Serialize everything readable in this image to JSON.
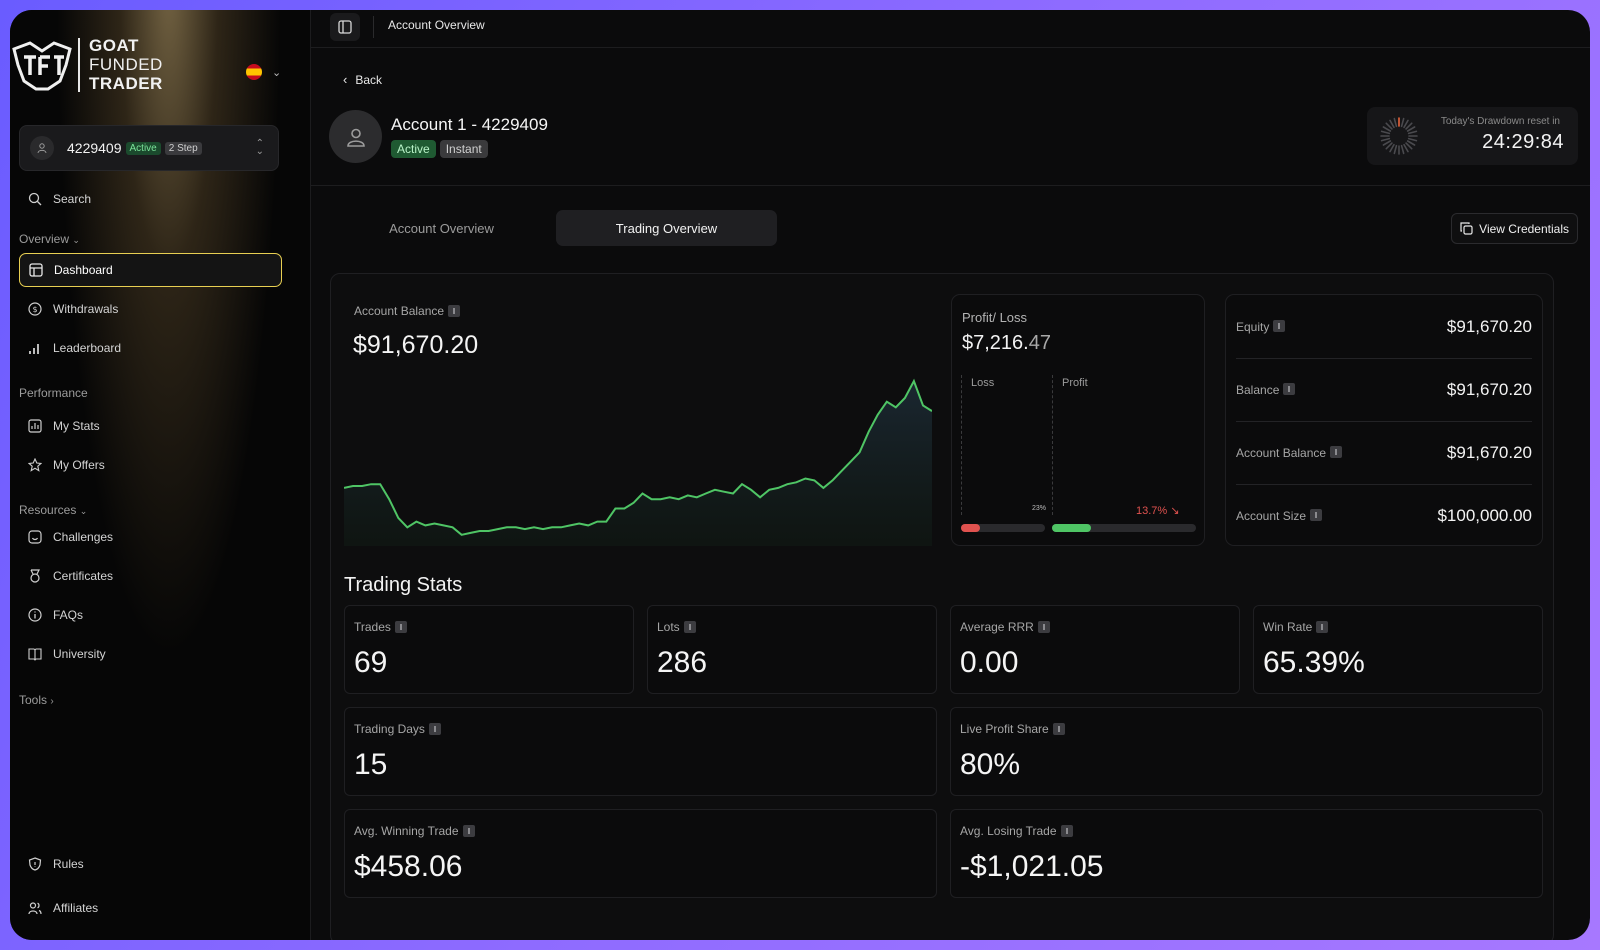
{
  "brand": {
    "line1": "GOAT",
    "line2": "FUNDED",
    "line3": "TRADER"
  },
  "account_switcher": {
    "id": "4229409",
    "status": "Active",
    "type": "2 Step"
  },
  "sidebar": {
    "search": "Search",
    "overview_label": "Overview",
    "overview_items": [
      "Dashboard",
      "Withdrawals",
      "Leaderboard"
    ],
    "performance_label": "Performance",
    "performance_items": [
      "My Stats",
      "My Offers"
    ],
    "resources_label": "Resources",
    "resources_items": [
      "Challenges",
      "Certificates",
      "FAQs",
      "University"
    ],
    "tools_label": "Tools",
    "bottom_items": [
      "Rules",
      "Affiliates"
    ]
  },
  "topbar": {
    "breadcrumb": "Account Overview"
  },
  "header": {
    "back": "Back",
    "title": "Account 1 - 4229409",
    "badges": [
      "Active",
      "Instant"
    ],
    "timer_label": "Today's Drawdown reset in",
    "timer_value": "24:29:84"
  },
  "tabs": [
    "Account Overview",
    "Trading Overview"
  ],
  "active_tab": 1,
  "view_credentials": "View Credentials",
  "balance": {
    "label": "Account Balance",
    "value": "$91,670.20"
  },
  "profit_loss": {
    "label": "Profit/ Loss",
    "value_main": "$7,216.",
    "value_dim": "47",
    "loss_label": "Loss",
    "profit_label": "Profit",
    "loss_pct": "23%",
    "profit_pct": "13.7%",
    "loss_fill": 0.23,
    "profit_fill": 0.27
  },
  "summary": [
    {
      "label": "Equity",
      "value": "$91,670.20"
    },
    {
      "label": "Balance",
      "value": "$91,670.20"
    },
    {
      "label": "Account Balance",
      "value": "$91,670.20"
    },
    {
      "label": "Account Size",
      "value": "$100,000.00"
    }
  ],
  "stats_title": "Trading Stats",
  "stats": [
    {
      "label": "Trades",
      "value": "69"
    },
    {
      "label": "Lots",
      "value": "286"
    },
    {
      "label": "Average RRR",
      "value": "0.00"
    },
    {
      "label": "Win Rate",
      "value": "65.39%"
    },
    {
      "label": "Trading Days",
      "value": "15"
    },
    {
      "label": "Live Profit Share",
      "value": "80%"
    },
    {
      "label": "Avg. Winning Trade",
      "value": "$458.06"
    },
    {
      "label": "Avg. Losing Trade",
      "value": "-$1,021.05"
    }
  ],
  "colors": {
    "accent_active": "#e8cf52",
    "positive": "#4fc565",
    "negative": "#e0524f"
  },
  "chart_data": {
    "type": "area",
    "title": "",
    "xlabel": "",
    "ylabel": "",
    "series": [
      {
        "values": [
          87.6,
          87.7,
          87.7,
          87.8,
          87.8,
          87.0,
          86.0,
          85.5,
          85.8,
          85.6,
          85.7,
          85.6,
          85.5,
          85.1,
          85.2,
          85.3,
          85.3,
          85.4,
          85.5,
          85.5,
          85.4,
          85.5,
          85.4,
          85.5,
          85.5,
          85.6,
          85.7,
          85.6,
          85.8,
          85.8,
          86.5,
          86.5,
          86.8,
          87.3,
          87.0,
          87.0,
          87.1,
          87.0,
          87.2,
          87.1,
          87.3,
          87.5,
          87.4,
          87.3,
          87.8,
          87.5,
          87.1,
          87.5,
          87.6,
          87.8,
          87.9,
          88.1,
          88.0,
          87.6,
          88.0,
          88.5,
          89.0,
          89.5,
          90.6,
          91.5,
          92.2,
          91.9,
          92.4,
          93.3,
          92.0,
          91.7
        ]
      }
    ],
    "ylim": [
      84.5,
      94
    ],
    "grid": false,
    "legend": "none"
  }
}
